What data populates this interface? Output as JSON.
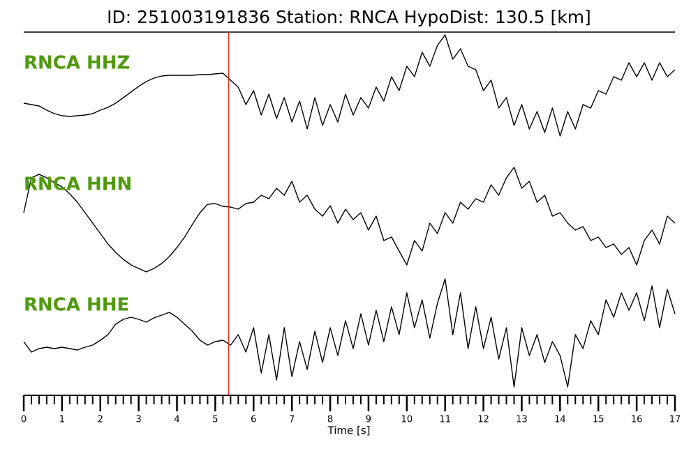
{
  "chart_data": {
    "type": "line",
    "title": "ID: 251003191836   Station: RNCA   HypoDist:   130.5 [km]",
    "xlabel": "Time [s]",
    "xlim": [
      0,
      17
    ],
    "xticks": [
      0,
      1,
      2,
      3,
      4,
      5,
      6,
      7,
      8,
      9,
      10,
      11,
      12,
      13,
      14,
      15,
      16,
      17
    ],
    "pick": {
      "x": 5.35,
      "color": "#e03030"
    },
    "label_color": "#4f9a0c",
    "ylim": [
      -80,
      80
    ],
    "x": [
      0,
      0.2,
      0.4,
      0.6,
      0.8,
      1,
      1.2,
      1.4,
      1.6,
      1.8,
      2,
      2.2,
      2.4,
      2.6,
      2.8,
      3,
      3.2,
      3.4,
      3.6,
      3.8,
      4,
      4.2,
      4.4,
      4.6,
      4.8,
      5,
      5.2,
      5.4,
      5.6,
      5.8,
      6,
      6.2,
      6.4,
      6.6,
      6.8,
      7,
      7.2,
      7.4,
      7.6,
      7.8,
      8,
      8.2,
      8.4,
      8.6,
      8.8,
      9,
      9.2,
      9.4,
      9.6,
      9.8,
      10,
      10.2,
      10.4,
      10.6,
      10.8,
      11,
      11.2,
      11.4,
      11.6,
      11.8,
      12,
      12.2,
      12.4,
      12.6,
      12.8,
      13,
      13.2,
      13.4,
      13.6,
      13.8,
      14,
      14.2,
      14.4,
      14.6,
      14.8,
      15,
      15.2,
      15.4,
      15.6,
      15.8,
      16,
      16.2,
      16.4,
      16.6,
      16.8,
      17
    ],
    "series": [
      {
        "name": "RNCA HHZ",
        "color": "#000000",
        "values": [
          -24,
          -26,
          -28,
          -34,
          -39,
          -42,
          -43,
          -42,
          -41,
          -39,
          -34,
          -30,
          -24,
          -16,
          -8,
          0,
          7,
          12,
          15,
          16,
          16,
          16,
          16,
          17,
          17,
          18,
          19,
          9,
          -1,
          -26,
          -6,
          -41,
          -11,
          -46,
          -16,
          -51,
          -21,
          -61,
          -16,
          -56,
          -26,
          -51,
          -11,
          -41,
          -16,
          -31,
          -1,
          -21,
          14,
          -6,
          29,
          14,
          49,
          29,
          59,
          74,
          39,
          54,
          29,
          24,
          -6,
          9,
          -31,
          -16,
          -56,
          -26,
          -61,
          -36,
          -66,
          -31,
          -71,
          -36,
          -61,
          -26,
          -31,
          -6,
          -11,
          14,
          9,
          34,
          14,
          34,
          9,
          34,
          14,
          24
        ]
      },
      {
        "name": "RNCA HHN",
        "color": "#000000",
        "values": [
          7,
          57,
          62,
          57,
          50,
          44,
          34,
          22,
          7,
          -8,
          -23,
          -38,
          -50,
          -60,
          -68,
          -73,
          -78,
          -73,
          -66,
          -56,
          -43,
          -28,
          -10,
          7,
          19,
          20,
          16,
          15,
          12,
          20,
          22,
          32,
          27,
          42,
          32,
          52,
          22,
          32,
          12,
          2,
          17,
          -8,
          12,
          -3,
          7,
          -18,
          2,
          -33,
          -28,
          -48,
          -68,
          -33,
          -48,
          -8,
          -23,
          7,
          -8,
          22,
          12,
          27,
          22,
          47,
          32,
          57,
          72,
          42,
          52,
          22,
          32,
          2,
          7,
          -8,
          -18,
          -13,
          -33,
          -28,
          -43,
          -38,
          -53,
          -43,
          -68,
          -33,
          -18,
          -38,
          2,
          -8
        ]
      },
      {
        "name": "RNCA HHE",
        "color": "#000000",
        "values": [
          -12,
          -27,
          -22,
          -20,
          -22,
          -20,
          -22,
          -24,
          -20,
          -17,
          -10,
          -2,
          13,
          20,
          23,
          20,
          16,
          22,
          26,
          30,
          23,
          13,
          3,
          -10,
          -17,
          -12,
          -10,
          -17,
          -2,
          -27,
          8,
          -57,
          -2,
          -67,
          8,
          -62,
          -12,
          -52,
          3,
          -42,
          8,
          -32,
          18,
          -22,
          28,
          -17,
          33,
          -12,
          38,
          -2,
          58,
          8,
          48,
          -7,
          43,
          78,
          -2,
          58,
          -22,
          38,
          -22,
          23,
          -37,
          8,
          -77,
          8,
          -32,
          -2,
          -42,
          -12,
          -32,
          -77,
          -2,
          -22,
          18,
          -2,
          48,
          23,
          58,
          33,
          58,
          18,
          68,
          8,
          63,
          28
        ]
      }
    ]
  }
}
